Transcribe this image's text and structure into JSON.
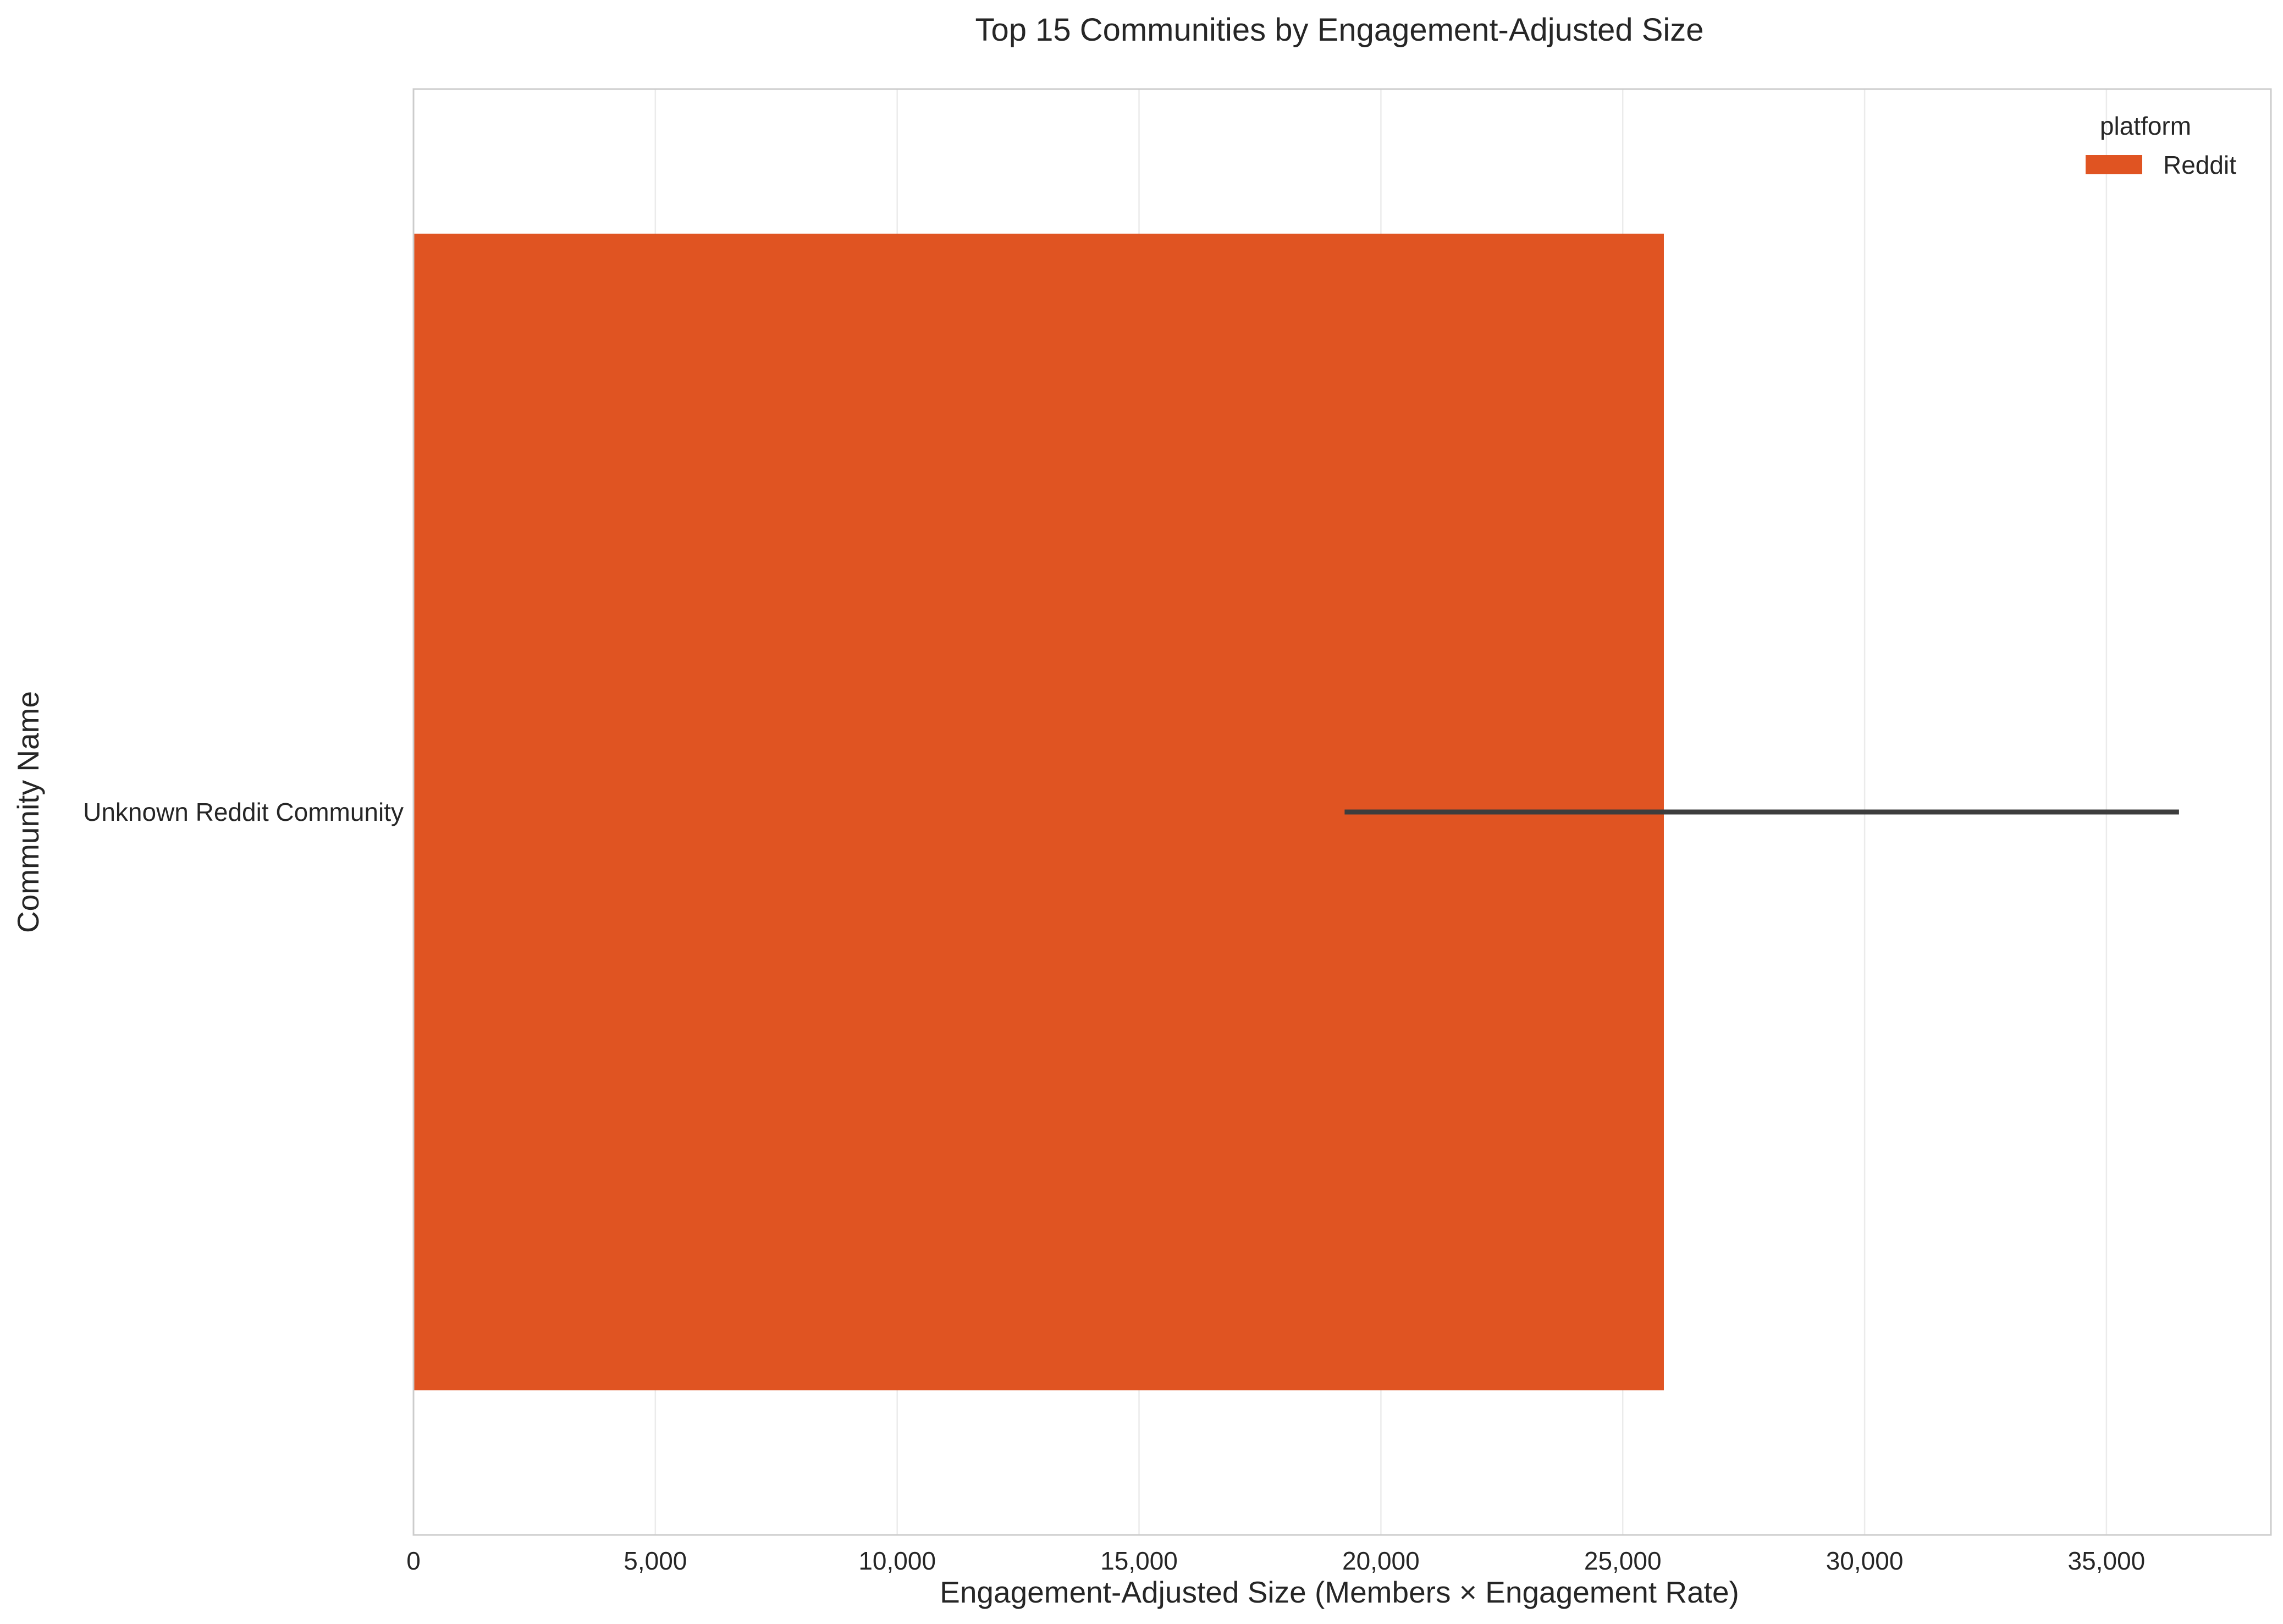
{
  "chart_data": {
    "type": "bar",
    "orientation": "horizontal",
    "title": "Top 15 Communities by Engagement-Adjusted Size",
    "xlabel": "Engagement-Adjusted Size (Members × Engagement Rate)",
    "ylabel": "Community Name",
    "categories": [
      "Unknown Reddit Community"
    ],
    "series": [
      {
        "name": "Reddit",
        "values": [
          25850
        ],
        "error_low": [
          19250
        ],
        "error_high": [
          36500
        ]
      }
    ],
    "xlim": [
      0,
      38400
    ],
    "xticks": [
      0,
      5000,
      10000,
      15000,
      20000,
      25000,
      30000,
      35000
    ],
    "xtick_labels": [
      "0",
      "5,000",
      "10,000",
      "15,000",
      "20,000",
      "25,000",
      "30,000",
      "35,000"
    ],
    "grid": true,
    "legend": {
      "title": "platform",
      "placement": "top-right",
      "entries": [
        "Reddit"
      ]
    },
    "colors": {
      "Reddit": "#E05422",
      "errorbar": "#3d3d3d",
      "grid": "#ebebeb",
      "frame": "#cccccc"
    }
  }
}
